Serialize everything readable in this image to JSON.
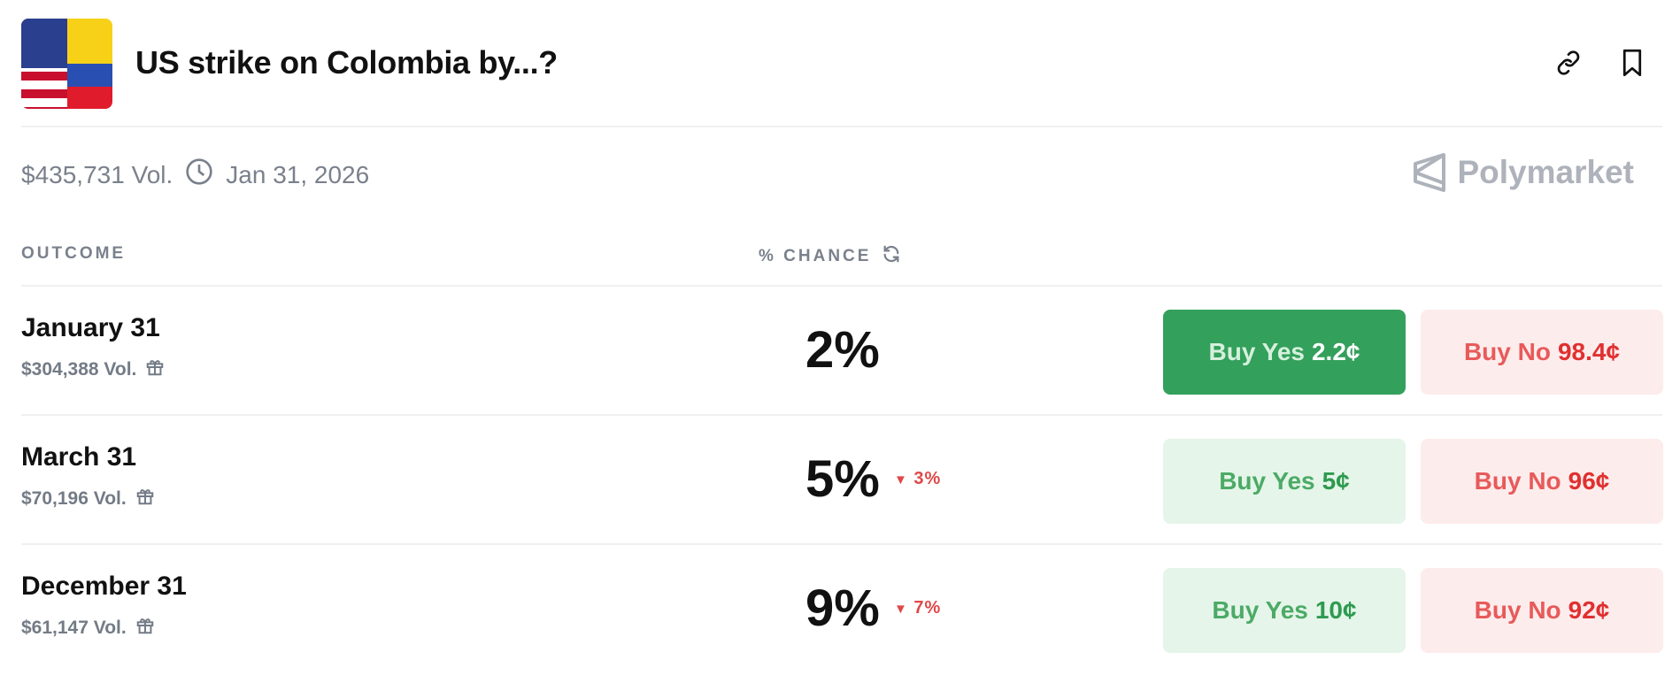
{
  "header": {
    "title": "US strike on Colombia by...?",
    "icons": [
      "link-icon",
      "bookmark-icon"
    ]
  },
  "meta": {
    "volume": "$435,731 Vol.",
    "end_date": "Jan 31, 2026",
    "brand": "Polymarket"
  },
  "columns": {
    "outcome": "OUTCOME",
    "chance": "% CHANCE"
  },
  "colors": {
    "yes": "#33a05b",
    "no": "#e03030",
    "muted": "#7a818c"
  },
  "rows": [
    {
      "name": "January 31",
      "volume": "$304,388 Vol.",
      "chance": "2%",
      "delta": "",
      "yes_label": "Buy Yes",
      "yes_price": "2.2¢",
      "no_label": "Buy No",
      "no_price": "98.4¢"
    },
    {
      "name": "March 31",
      "volume": "$70,196 Vol.",
      "chance": "5%",
      "delta": "3%",
      "yes_label": "Buy Yes",
      "yes_price": "5¢",
      "no_label": "Buy No",
      "no_price": "96¢"
    },
    {
      "name": "December 31",
      "volume": "$61,147 Vol.",
      "chance": "9%",
      "delta": "7%",
      "yes_label": "Buy Yes",
      "yes_price": "10¢",
      "no_label": "Buy No",
      "no_price": "92¢"
    }
  ]
}
